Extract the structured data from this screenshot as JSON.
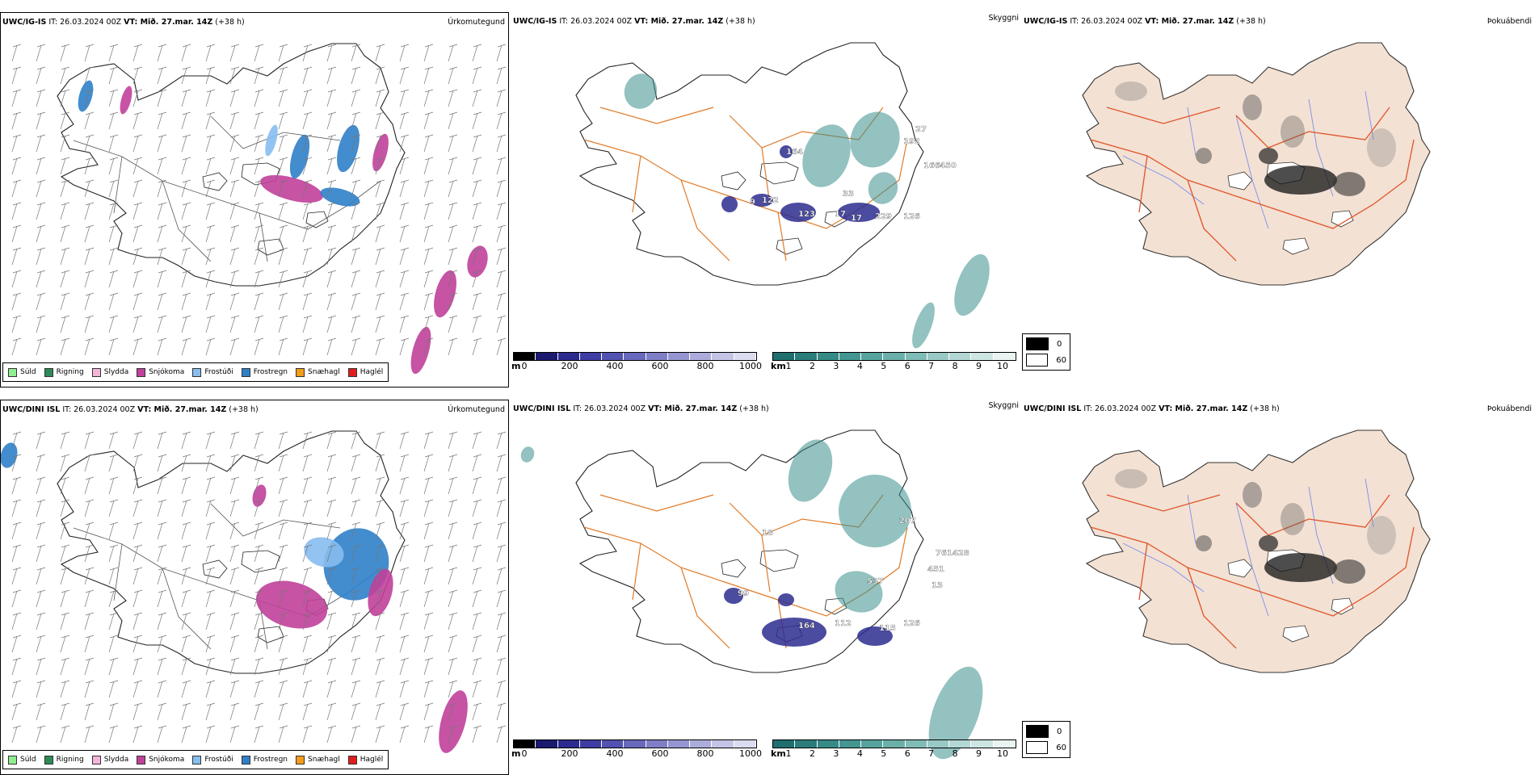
{
  "rows": [
    {
      "precip": {
        "model": "UWC/IG-IS",
        "it_label": "IT: 26.03.2024 00Z",
        "vt_label": "VT: Mið. 27.mar. 14Z",
        "lead": "(+38 h)",
        "field": "Úrkomutegund"
      },
      "cloud": {
        "model": "UWC/IG-IS",
        "it_label": "IT: 26.03.2024 00Z",
        "vt_label": "VT: Mið. 27.mar. 14Z",
        "lead": "(+38 h)",
        "field": "Skyggni",
        "labels": [
          "122",
          "123",
          "17",
          "229",
          "126",
          "192",
          "164",
          "166",
          "450",
          "33",
          "17",
          "27",
          "9"
        ]
      },
      "fog": {
        "model": "UWC/IG-IS",
        "it_label": "IT: 26.03.2024 00Z",
        "vt_label": "VT: Mið. 27.mar. 14Z",
        "lead": "(+38 h)",
        "field": "Þokuábendi"
      }
    },
    {
      "precip": {
        "model": "UWC/DINI ISL",
        "it_label": "IT: 26.03.2024 00Z",
        "vt_label": "VT: Mið. 27.mar. 14Z",
        "lead": "(+38 h)",
        "field": "Úrkomutegund"
      },
      "cloud": {
        "model": "UWC/DINI ISL",
        "it_label": "IT: 26.03.2024 00Z",
        "vt_label": "VT: Mið. 27.mar. 14Z",
        "lead": "(+38 h)",
        "field": "Skyggni",
        "labels": [
          "207",
          "761428",
          "451",
          "537",
          "164",
          "112",
          "115",
          "126",
          "13",
          "99",
          "18"
        ]
      },
      "fog": {
        "model": "UWC/DINI ISL",
        "it_label": "IT: 26.03.2024 00Z",
        "vt_label": "VT: Mið. 27.mar. 14Z",
        "lead": "(+38 h)",
        "field": "Þokuábendi"
      }
    }
  ],
  "precip_legend": [
    {
      "label": "Súld",
      "color": "#90ee90"
    },
    {
      "label": "Rigning",
      "color": "#2e8b57"
    },
    {
      "label": "Slydda",
      "color": "#f4b6d8"
    },
    {
      "label": "Snjókoma",
      "color": "#c0409a"
    },
    {
      "label": "Frostúði",
      "color": "#87bdf0"
    },
    {
      "label": "Frostregn",
      "color": "#2f7fc8"
    },
    {
      "label": "Snæhagl",
      "color": "#f39c1a"
    },
    {
      "label": "Haglél",
      "color": "#e21c1c"
    }
  ],
  "cloudbase_bar": {
    "unit": "m",
    "ticks": [
      "0",
      "200",
      "400",
      "600",
      "800",
      "1000"
    ],
    "colors": [
      "#000000",
      "#1a1a6e",
      "#2b2b8f",
      "#3d3da3",
      "#5252b0",
      "#6868bd",
      "#7f7fc8",
      "#9595d2",
      "#acacdc",
      "#c4c4e6",
      "#dcdcf0"
    ]
  },
  "visibility_bar": {
    "unit": "km",
    "ticks": [
      "1",
      "2",
      "3",
      "4",
      "5",
      "6",
      "7",
      "8",
      "9",
      "10"
    ],
    "colors": [
      "#1f6f6f",
      "#2a7d7a",
      "#368a86",
      "#449692",
      "#56a39e",
      "#6aafaa",
      "#80bcb7",
      "#98c9c5",
      "#b2d7d4",
      "#cde5e3",
      "#e8f3f2"
    ]
  },
  "fog_legend": [
    {
      "label": "0",
      "color": "#000000"
    },
    {
      "label": "60",
      "color": "#ffffff"
    }
  ],
  "colors": {
    "road": "#e07b2a",
    "land_fog": "#f3e1d3",
    "fog_road": "#e0542a",
    "river": "#7a8fef",
    "coast": "#222222",
    "snow": "#c0409a",
    "freezing": "#2f7fc8",
    "freezing_drizzle": "#87bdf0",
    "teal": "#3b8f8c",
    "cloudbase": "#2b2b8f"
  }
}
